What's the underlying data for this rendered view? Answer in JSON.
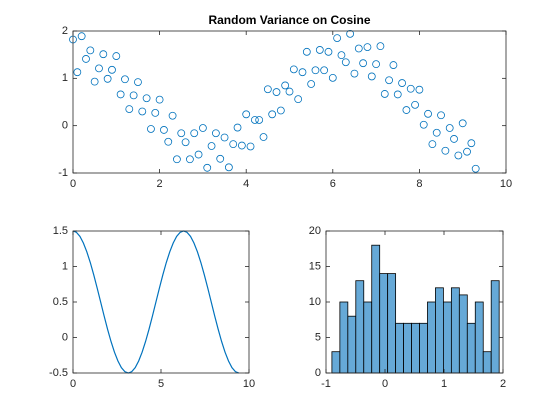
{
  "chart_data": [
    {
      "type": "scatter",
      "title": "Random Variance on Cosine",
      "color": "#0072bd",
      "x": [
        0,
        0.1,
        0.2,
        0.3,
        0.4,
        0.5,
        0.6,
        0.7,
        0.8,
        0.9,
        1.0,
        1.1,
        1.2,
        1.3,
        1.4,
        1.5,
        1.6,
        1.7,
        1.8,
        1.9,
        2.0,
        2.1,
        2.2,
        2.3,
        2.4,
        2.5,
        2.6,
        2.7,
        2.8,
        2.9,
        3.0,
        3.1,
        3.2,
        3.3,
        3.4,
        3.5,
        3.6,
        3.7,
        3.8,
        3.9,
        4.0,
        4.1,
        4.2,
        4.3,
        4.4,
        4.5,
        4.6,
        4.7,
        4.8,
        4.9,
        5.0,
        5.1,
        5.2,
        5.3,
        5.4,
        5.5,
        5.6,
        5.7,
        5.8,
        5.9,
        6.0,
        6.1,
        6.2,
        6.3,
        6.4,
        6.5,
        6.6,
        6.7,
        6.8,
        6.9,
        7.0,
        7.1,
        7.2,
        7.3,
        7.4,
        7.5,
        7.6,
        7.7,
        7.8,
        7.9,
        8.0,
        8.1,
        8.2,
        8.3,
        8.4,
        8.5,
        8.6,
        8.7,
        8.8,
        8.9,
        9.0,
        9.1,
        9.2,
        9.3
      ],
      "values": [
        1.82,
        1.13,
        1.89,
        1.41,
        1.59,
        0.93,
        1.21,
        1.51,
        0.99,
        1.18,
        1.47,
        0.66,
        0.98,
        0.35,
        0.64,
        0.92,
        0.3,
        0.58,
        -0.07,
        0.27,
        0.55,
        -0.09,
        -0.34,
        0.21,
        -0.71,
        -0.16,
        -0.35,
        -0.71,
        -0.16,
        -0.61,
        -0.05,
        -0.89,
        -0.43,
        -0.16,
        -0.7,
        -0.25,
        -0.88,
        -0.39,
        -0.04,
        -0.42,
        0.24,
        -0.44,
        0.12,
        0.12,
        -0.24,
        0.77,
        0.24,
        0.71,
        0.32,
        0.85,
        0.72,
        1.19,
        0.56,
        1.13,
        1.56,
        0.88,
        1.17,
        1.6,
        1.17,
        1.56,
        1.01,
        1.85,
        1.49,
        1.34,
        1.94,
        1.1,
        1.63,
        1.32,
        1.66,
        1.04,
        1.3,
        1.68,
        0.67,
        0.96,
        1.28,
        0.66,
        0.9,
        0.33,
        0.78,
        0.44,
        0.76,
        0.02,
        0.25,
        -0.39,
        -0.15,
        0.22,
        -0.53,
        -0.05,
        -0.28,
        -0.63,
        0.05,
        -0.55,
        -0.37,
        -0.91
      ],
      "xlim": [
        0,
        10
      ],
      "xticks": [
        0,
        2,
        4,
        6,
        8,
        10
      ],
      "ylim": [
        -1,
        2
      ],
      "yticks": [
        -1,
        0,
        1,
        2
      ]
    },
    {
      "type": "line",
      "color": "#0072bd",
      "x": [
        0,
        0.196,
        0.393,
        0.589,
        0.785,
        0.982,
        1.178,
        1.374,
        1.571,
        1.767,
        1.963,
        2.16,
        2.356,
        2.553,
        2.749,
        2.945,
        3.142,
        3.338,
        3.534,
        3.731,
        3.927,
        4.123,
        4.32,
        4.516,
        4.712,
        4.909,
        5.105,
        5.301,
        5.498,
        5.694,
        5.89,
        6.087,
        6.283,
        6.48,
        6.676,
        6.872,
        7.069,
        7.265,
        7.461,
        7.658,
        7.854,
        8.05,
        8.247,
        8.443,
        8.639,
        8.836,
        9.032,
        9.228,
        9.425
      ],
      "values": [
        1.5,
        1.481,
        1.424,
        1.331,
        1.207,
        1.056,
        0.883,
        0.695,
        0.5,
        0.305,
        0.117,
        -0.056,
        -0.207,
        -0.331,
        -0.424,
        -0.481,
        -0.5,
        -0.481,
        -0.424,
        -0.331,
        -0.207,
        -0.056,
        0.117,
        0.305,
        0.5,
        0.695,
        0.883,
        1.056,
        1.207,
        1.331,
        1.424,
        1.481,
        1.5,
        1.481,
        1.424,
        1.331,
        1.207,
        1.056,
        0.883,
        0.695,
        0.5,
        0.305,
        0.117,
        -0.056,
        -0.207,
        -0.331,
        -0.424,
        -0.481,
        -0.5
      ],
      "xlim": [
        0,
        10
      ],
      "xticks": [
        0,
        5,
        10
      ],
      "ylim": [
        -0.5,
        1.5
      ],
      "yticks": [
        -0.5,
        0,
        0.5,
        1,
        1.5
      ]
    },
    {
      "type": "histogram",
      "color": "#66a9d7",
      "bins": [
        -0.9,
        -0.765,
        -0.63,
        -0.495,
        -0.36,
        -0.225,
        -0.09,
        0.045,
        0.18,
        0.315,
        0.45,
        0.585,
        0.72,
        0.855,
        0.99,
        1.125,
        1.26,
        1.395,
        1.53,
        1.665,
        1.8,
        1.935
      ],
      "values": [
        3,
        10,
        8,
        13,
        10,
        18,
        14,
        14,
        7,
        7,
        7,
        7,
        10,
        12,
        10,
        12,
        11,
        7,
        10,
        3,
        13
      ],
      "xlim": [
        -1,
        2
      ],
      "xticks": [
        -1,
        0,
        1,
        2
      ],
      "ylim": [
        0,
        20
      ],
      "yticks": [
        0,
        5,
        10,
        15,
        20
      ]
    }
  ]
}
